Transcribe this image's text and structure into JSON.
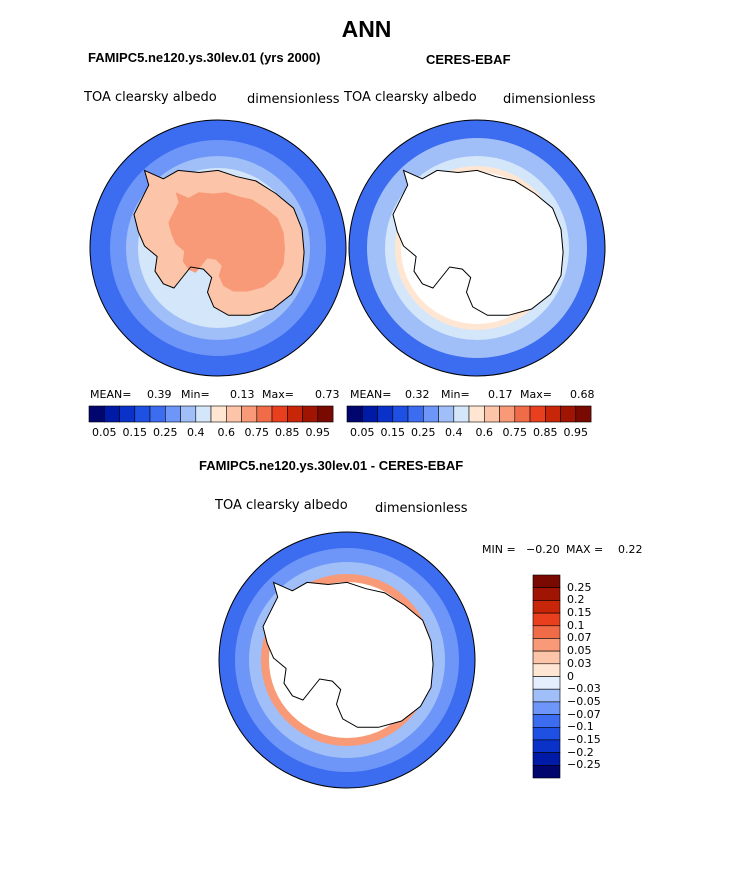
{
  "title": "ANN",
  "chart_data": [
    {
      "type": "heatmap",
      "projection": "south-polar-stereographic",
      "panel_title": "FAMIPC5.ne120.ys.30lev.01 (yrs 2000)",
      "variable": "TOA clearsky albedo",
      "units": "dimensionless",
      "stats": {
        "mean_label": "MEAN=",
        "mean": "0.39",
        "min_label": "Min=",
        "min": "0.13",
        "max_label": "Max=",
        "max": "0.73"
      },
      "colorbar": {
        "orientation": "horizontal",
        "levels": [
          "0.05",
          "0.1",
          "0.15",
          "0.2",
          "0.25",
          "0.3",
          "0.4",
          "0.5",
          "0.6",
          "0.7",
          "0.75",
          "0.8",
          "0.85",
          "0.9",
          "0.95"
        ],
        "tick_labels": [
          "0.05",
          "0.15",
          "0.25",
          "0.4",
          "0.6",
          "0.75",
          "0.85",
          "0.95"
        ],
        "colors": [
          "#00066e",
          "#001aa8",
          "#0a32c8",
          "#1e50e4",
          "#3c6cf0",
          "#6e96f8",
          "#a0bef8",
          "#d4e6fa",
          "#ffe6d2",
          "#fcc4a8",
          "#f89a78",
          "#f06c48",
          "#e8401e",
          "#c82608",
          "#a01404",
          "#780a02"
        ]
      }
    },
    {
      "type": "heatmap",
      "projection": "south-polar-stereographic",
      "panel_title": "CERES-EBAF",
      "variable": "TOA clearsky albedo",
      "units": "dimensionless",
      "stats": {
        "mean_label": "MEAN=",
        "mean": "0.32",
        "min_label": "Min=",
        "min": "0.17",
        "max_label": "Max=",
        "max": "0.68"
      },
      "colorbar": {
        "orientation": "horizontal",
        "levels": [
          "0.05",
          "0.1",
          "0.15",
          "0.2",
          "0.25",
          "0.3",
          "0.4",
          "0.5",
          "0.6",
          "0.7",
          "0.75",
          "0.8",
          "0.85",
          "0.9",
          "0.95"
        ],
        "tick_labels": [
          "0.05",
          "0.15",
          "0.25",
          "0.4",
          "0.6",
          "0.75",
          "0.85",
          "0.95"
        ],
        "colors": [
          "#00066e",
          "#001aa8",
          "#0a32c8",
          "#1e50e4",
          "#3c6cf0",
          "#6e96f8",
          "#a0bef8",
          "#d4e6fa",
          "#ffe6d2",
          "#fcc4a8",
          "#f89a78",
          "#f06c48",
          "#e8401e",
          "#c82608",
          "#a01404",
          "#780a02"
        ]
      }
    },
    {
      "type": "heatmap",
      "projection": "south-polar-stereographic",
      "panel_title": "FAMIPC5.ne120.ys.30lev.01 - CERES-EBAF",
      "variable": "TOA clearsky albedo",
      "units": "dimensionless",
      "stats": {
        "min_label": "MIN =",
        "min": "−0.20",
        "max_label": "MAX =",
        "max": "0.22"
      },
      "colorbar": {
        "orientation": "vertical",
        "levels": [
          "0.25",
          "0.2",
          "0.15",
          "0.1",
          "0.07",
          "0.05",
          "0.03",
          "0",
          "−0.03",
          "−0.05",
          "−0.07",
          "−0.1",
          "−0.15",
          "−0.2",
          "−0.25"
        ],
        "tick_labels": [
          "0.25",
          "0.2",
          "0.15",
          "0.1",
          "0.07",
          "0.05",
          "0.03",
          "0",
          "−0.03",
          "−0.05",
          "−0.07",
          "−0.1",
          "−0.15",
          "−0.2",
          "−0.25"
        ],
        "colors": [
          "#780a02",
          "#a01404",
          "#c82608",
          "#e8401e",
          "#f06c48",
          "#f89a78",
          "#fcc4a8",
          "#ffe6d2",
          "#e4eefc",
          "#a0bef8",
          "#6e96f8",
          "#3c6cf0",
          "#1e50e4",
          "#0a32c8",
          "#001aa8",
          "#00066e"
        ]
      }
    }
  ]
}
